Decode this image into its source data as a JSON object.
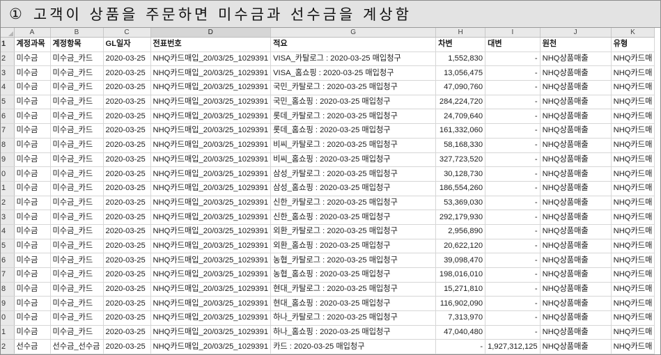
{
  "banner": {
    "number": "①",
    "text": "고객이 상품을 주문하면 미수금과 선수금을 계상함"
  },
  "columns": [
    "A",
    "B",
    "C",
    "D",
    "G",
    "H",
    "I",
    "J",
    "K"
  ],
  "selected_column": "D",
  "row_numbers": [
    "1",
    "2",
    "3",
    "4",
    "5",
    "6",
    "7",
    "8",
    "9",
    "0",
    "1",
    "2",
    "3",
    "4",
    "5",
    "6",
    "7",
    "8",
    "9",
    "0",
    "1",
    "2"
  ],
  "header": [
    "계정과목",
    "계정항목",
    "GL일자",
    "전표번호",
    "적요",
    "차변",
    "대변",
    "원천",
    "유형"
  ],
  "rows": [
    [
      "미수금",
      "미수금_카드",
      "2020-03-25",
      "NHQ카드매입_20/03/25_1029391",
      "VISA_카탈로그 : 2020-03-25 매입청구",
      "1,552,830",
      "-",
      "NHQ상품매출",
      "NHQ카드매"
    ],
    [
      "미수금",
      "미수금_카드",
      "2020-03-25",
      "NHQ카드매입_20/03/25_1029391",
      "VISA_홈쇼핑 : 2020-03-25 매입청구",
      "13,056,475",
      "-",
      "NHQ상품매출",
      "NHQ카드매"
    ],
    [
      "미수금",
      "미수금_카드",
      "2020-03-25",
      "NHQ카드매입_20/03/25_1029391",
      "국민_카탈로그 : 2020-03-25 매입청구",
      "47,090,760",
      "-",
      "NHQ상품매출",
      "NHQ카드매"
    ],
    [
      "미수금",
      "미수금_카드",
      "2020-03-25",
      "NHQ카드매입_20/03/25_1029391",
      "국민_홈쇼핑 : 2020-03-25 매입청구",
      "284,224,720",
      "-",
      "NHQ상품매출",
      "NHQ카드매"
    ],
    [
      "미수금",
      "미수금_카드",
      "2020-03-25",
      "NHQ카드매입_20/03/25_1029391",
      "롯데_카탈로그 : 2020-03-25 매입청구",
      "24,709,640",
      "-",
      "NHQ상품매출",
      "NHQ카드매"
    ],
    [
      "미수금",
      "미수금_카드",
      "2020-03-25",
      "NHQ카드매입_20/03/25_1029391",
      "롯데_홈쇼핑 : 2020-03-25 매입청구",
      "161,332,060",
      "-",
      "NHQ상품매출",
      "NHQ카드매"
    ],
    [
      "미수금",
      "미수금_카드",
      "2020-03-25",
      "NHQ카드매입_20/03/25_1029391",
      "비씨_카탈로그 : 2020-03-25 매입청구",
      "58,168,330",
      "-",
      "NHQ상품매출",
      "NHQ카드매"
    ],
    [
      "미수금",
      "미수금_카드",
      "2020-03-25",
      "NHQ카드매입_20/03/25_1029391",
      "비씨_홈쇼핑 : 2020-03-25 매입청구",
      "327,723,520",
      "-",
      "NHQ상품매출",
      "NHQ카드매"
    ],
    [
      "미수금",
      "미수금_카드",
      "2020-03-25",
      "NHQ카드매입_20/03/25_1029391",
      "삼성_카탈로그 : 2020-03-25 매입청구",
      "30,128,730",
      "-",
      "NHQ상품매출",
      "NHQ카드매"
    ],
    [
      "미수금",
      "미수금_카드",
      "2020-03-25",
      "NHQ카드매입_20/03/25_1029391",
      "삼성_홈쇼핑 : 2020-03-25 매입청구",
      "186,554,260",
      "-",
      "NHQ상품매출",
      "NHQ카드매"
    ],
    [
      "미수금",
      "미수금_카드",
      "2020-03-25",
      "NHQ카드매입_20/03/25_1029391",
      "신한_카탈로그 : 2020-03-25 매입청구",
      "53,369,030",
      "-",
      "NHQ상품매출",
      "NHQ카드매"
    ],
    [
      "미수금",
      "미수금_카드",
      "2020-03-25",
      "NHQ카드매입_20/03/25_1029391",
      "신한_홈쇼핑 : 2020-03-25 매입청구",
      "292,179,930",
      "-",
      "NHQ상품매출",
      "NHQ카드매"
    ],
    [
      "미수금",
      "미수금_카드",
      "2020-03-25",
      "NHQ카드매입_20/03/25_1029391",
      "외환_카탈로그 : 2020-03-25 매입청구",
      "2,956,890",
      "-",
      "NHQ상품매출",
      "NHQ카드매"
    ],
    [
      "미수금",
      "미수금_카드",
      "2020-03-25",
      "NHQ카드매입_20/03/25_1029391",
      "외환_홈쇼핑 : 2020-03-25 매입청구",
      "20,622,120",
      "-",
      "NHQ상품매출",
      "NHQ카드매"
    ],
    [
      "미수금",
      "미수금_카드",
      "2020-03-25",
      "NHQ카드매입_20/03/25_1029391",
      "농협_카탈로그 : 2020-03-25 매입청구",
      "39,098,470",
      "-",
      "NHQ상품매출",
      "NHQ카드매"
    ],
    [
      "미수금",
      "미수금_카드",
      "2020-03-25",
      "NHQ카드매입_20/03/25_1029391",
      "농협_홈쇼핑 : 2020-03-25 매입청구",
      "198,016,010",
      "-",
      "NHQ상품매출",
      "NHQ카드매"
    ],
    [
      "미수금",
      "미수금_카드",
      "2020-03-25",
      "NHQ카드매입_20/03/25_1029391",
      "현대_카탈로그 : 2020-03-25 매입청구",
      "15,271,810",
      "-",
      "NHQ상품매출",
      "NHQ카드매"
    ],
    [
      "미수금",
      "미수금_카드",
      "2020-03-25",
      "NHQ카드매입_20/03/25_1029391",
      "현대_홈쇼핑 : 2020-03-25 매입청구",
      "116,902,090",
      "-",
      "NHQ상품매출",
      "NHQ카드매"
    ],
    [
      "미수금",
      "미수금_카드",
      "2020-03-25",
      "NHQ카드매입_20/03/25_1029391",
      "하나_카탈로그 : 2020-03-25 매입청구",
      "7,313,970",
      "-",
      "NHQ상품매출",
      "NHQ카드매"
    ],
    [
      "미수금",
      "미수금_카드",
      "2020-03-25",
      "NHQ카드매입_20/03/25_1029391",
      "하나_홈쇼핑 : 2020-03-25 매입청구",
      "47,040,480",
      "-",
      "NHQ상품매출",
      "NHQ카드매"
    ],
    [
      "선수금",
      "선수금_선수금",
      "2020-03-25",
      "NHQ카드매입_20/03/25_1029391",
      "카드 : 2020-03-25 매입청구",
      "-",
      "1,927,312,125",
      "NHQ상품매출",
      "NHQ카드매"
    ]
  ]
}
